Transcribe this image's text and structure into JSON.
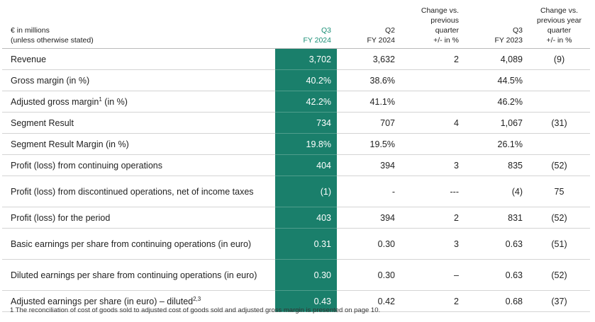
{
  "header": {
    "label_lines": [
      "€ in millions",
      "(unless otherwise stated)"
    ],
    "columns": [
      [
        "Q3",
        "FY 2024"
      ],
      [
        "Q2",
        "FY 2024"
      ],
      [
        "Change vs.",
        "previous",
        "quarter",
        "+/- in %"
      ],
      [
        "Q3",
        "FY 2023"
      ],
      [
        "Change vs.",
        "previous year",
        "quarter",
        "+/- in %"
      ]
    ]
  },
  "rows": [
    {
      "label": "Revenue",
      "cells": [
        "3,702",
        "3,632",
        "2",
        "4,089",
        "(9)"
      ]
    },
    {
      "label": "Gross margin (in %)",
      "cells": [
        "40.2%",
        "38.6%",
        null,
        "44.5%",
        null
      ]
    },
    {
      "label": "Adjusted gross margin",
      "label_sup": "1",
      "label_after": " (in %)",
      "cells": [
        "42.2%",
        "41.1%",
        null,
        "46.2%",
        null
      ]
    },
    {
      "label": "Segment Result",
      "cells": [
        "734",
        "707",
        "4",
        "1,067",
        "(31)"
      ]
    },
    {
      "label": "Segment Result Margin (in %)",
      "cells": [
        "19.8%",
        "19.5%",
        null,
        "26.1%",
        null
      ]
    },
    {
      "label": "Profit (loss) from continuing operations",
      "cells": [
        "404",
        "394",
        "3",
        "835",
        "(52)"
      ]
    },
    {
      "label": "Profit (loss) from discontinued operations, net of income taxes",
      "cells": [
        "(1)",
        "-",
        "---",
        "(4)",
        "75"
      ]
    },
    {
      "label": "Profit (loss) for the period",
      "cells": [
        "403",
        "394",
        "2",
        "831",
        "(52)"
      ]
    },
    {
      "label": "Basic earnings per share from continuing operations (in euro)",
      "cells": [
        "0.31",
        "0.30",
        "3",
        "0.63",
        "(51)"
      ]
    },
    {
      "label": "Diluted earnings per share from continuing operations (in euro)",
      "cells": [
        "0.30",
        "0.30",
        "–",
        "0.63",
        "(52)"
      ]
    },
    {
      "label": "Adjusted earnings per share (in euro) – diluted",
      "label_sup": "2,3",
      "cells": [
        "0.43",
        "0.42",
        "2",
        "0.68",
        "(37)"
      ]
    }
  ],
  "footnote": "1 The reconciliation of cost of goods sold to adjusted cost of goods sold and adjusted gross margin is presented on page 10."
}
